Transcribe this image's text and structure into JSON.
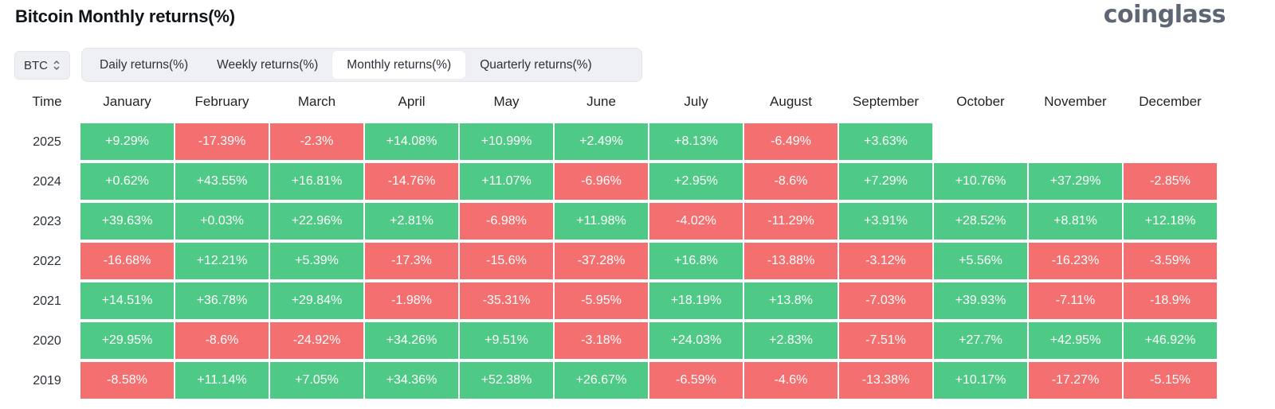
{
  "header": {
    "title": "Bitcoin Monthly returns(%)",
    "brand": "coinglass"
  },
  "asset_select": {
    "value": "BTC",
    "icon": "chevron-updown-icon"
  },
  "tabs": [
    {
      "label": "Daily returns(%)",
      "active": false
    },
    {
      "label": "Weekly returns(%)",
      "active": false
    },
    {
      "label": "Monthly returns(%)",
      "active": true
    },
    {
      "label": "Quarterly returns(%)",
      "active": false
    }
  ],
  "table": {
    "time_label": "Time",
    "months": [
      "January",
      "February",
      "March",
      "April",
      "May",
      "June",
      "July",
      "August",
      "September",
      "October",
      "November",
      "December"
    ],
    "rows": [
      {
        "year": "2025",
        "values": [
          "+9.29%",
          "-17.39%",
          "-2.3%",
          "+14.08%",
          "+10.99%",
          "+2.49%",
          "+8.13%",
          "-6.49%",
          "+3.63%",
          "",
          "",
          ""
        ]
      },
      {
        "year": "2024",
        "values": [
          "+0.62%",
          "+43.55%",
          "+16.81%",
          "-14.76%",
          "+11.07%",
          "-6.96%",
          "+2.95%",
          "-8.6%",
          "+7.29%",
          "+10.76%",
          "+37.29%",
          "-2.85%"
        ]
      },
      {
        "year": "2023",
        "values": [
          "+39.63%",
          "+0.03%",
          "+22.96%",
          "+2.81%",
          "-6.98%",
          "+11.98%",
          "-4.02%",
          "-11.29%",
          "+3.91%",
          "+28.52%",
          "+8.81%",
          "+12.18%"
        ]
      },
      {
        "year": "2022",
        "values": [
          "-16.68%",
          "+12.21%",
          "+5.39%",
          "-17.3%",
          "-15.6%",
          "-37.28%",
          "+16.8%",
          "-13.88%",
          "-3.12%",
          "+5.56%",
          "-16.23%",
          "-3.59%"
        ]
      },
      {
        "year": "2021",
        "values": [
          "+14.51%",
          "+36.78%",
          "+29.84%",
          "-1.98%",
          "-35.31%",
          "-5.95%",
          "+18.19%",
          "+13.8%",
          "-7.03%",
          "+39.93%",
          "-7.11%",
          "-18.9%"
        ]
      },
      {
        "year": "2020",
        "values": [
          "+29.95%",
          "-8.6%",
          "-24.92%",
          "+34.26%",
          "+9.51%",
          "-3.18%",
          "+24.03%",
          "+2.83%",
          "-7.51%",
          "+27.7%",
          "+42.95%",
          "+46.92%"
        ]
      },
      {
        "year": "2019",
        "values": [
          "-8.58%",
          "+11.14%",
          "+7.05%",
          "+34.36%",
          "+52.38%",
          "+26.67%",
          "-6.59%",
          "-4.6%",
          "-13.38%",
          "+10.17%",
          "-17.27%",
          "-5.15%"
        ]
      }
    ]
  },
  "colors": {
    "positive": "#4fc986",
    "negative": "#f46f6f"
  }
}
